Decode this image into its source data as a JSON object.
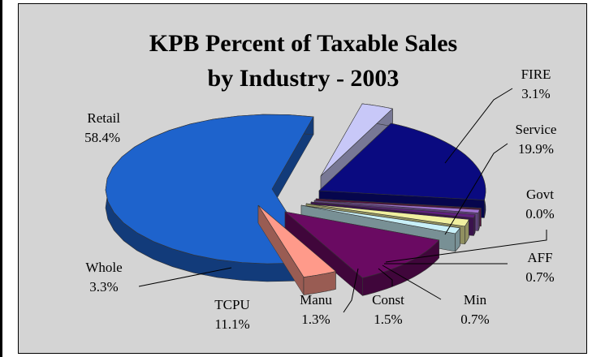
{
  "chart_data": {
    "type": "pie",
    "title_line1": "KPB Percent of Taxable Sales",
    "title_line2": "by Industry - 2003",
    "slices": [
      {
        "name": "Retail",
        "pct_label": "58.4%",
        "value": 58.4,
        "color": "#1e63cc"
      },
      {
        "name": "FIRE",
        "pct_label": "3.1%",
        "value": 3.1,
        "color": "#c8c8f8"
      },
      {
        "name": "Service",
        "pct_label": "19.9%",
        "value": 19.9,
        "color": "#0a0a80"
      },
      {
        "name": "Govt",
        "pct_label": "0.0%",
        "value": 0.0,
        "color": "#8a2060"
      },
      {
        "name": "AFF",
        "pct_label": "0.7%",
        "value": 0.7,
        "color": "#a070d0"
      },
      {
        "name": "Min",
        "pct_label": "0.7%",
        "value": 0.7,
        "color": "#602080"
      },
      {
        "name": "Const",
        "pct_label": "1.5%",
        "value": 1.5,
        "color": "#f0f0a0"
      },
      {
        "name": "Manu",
        "pct_label": "1.3%",
        "value": 1.3,
        "color": "#c8f0f8"
      },
      {
        "name": "TCPU",
        "pct_label": "11.1%",
        "value": 11.1,
        "color": "#6a0a62"
      },
      {
        "name": "Whole",
        "pct_label": "3.3%",
        "value": 3.3,
        "color": "#ff9a8a"
      }
    ]
  }
}
